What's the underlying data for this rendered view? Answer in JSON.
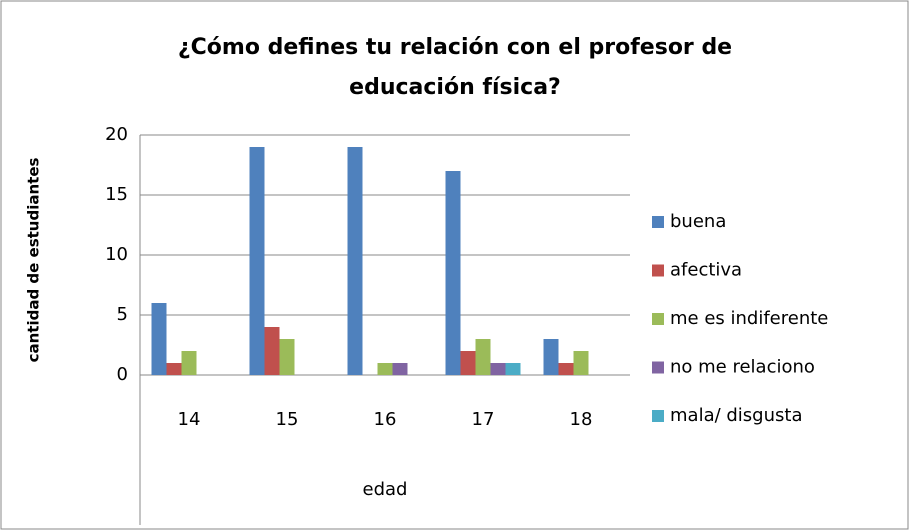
{
  "chart_data": {
    "type": "bar",
    "title": [
      "¿Cómo defines tu relación con el profesor de",
      "educación física?"
    ],
    "x_label": "edad",
    "y_label": "cantidad de estudiantes",
    "categories": [
      "14",
      "15",
      "16",
      "17",
      "18"
    ],
    "series": [
      {
        "name": "buena",
        "color": "#4f81bd",
        "values": [
          6,
          19,
          19,
          17,
          3
        ]
      },
      {
        "name": "afectiva",
        "color": "#c0504d",
        "values": [
          1,
          4,
          0,
          2,
          1
        ]
      },
      {
        "name": "me es indiferente",
        "color": "#9bbb59",
        "values": [
          2,
          3,
          1,
          3,
          2
        ]
      },
      {
        "name": "no me relaciono",
        "color": "#8064a2",
        "values": [
          0,
          0,
          1,
          1,
          0
        ]
      },
      {
        "name": "mala/ disgusta",
        "color": "#4bacc6",
        "values": [
          0,
          0,
          0,
          1,
          0
        ]
      }
    ],
    "ylim": [
      0,
      20
    ],
    "yticks": [
      0,
      5,
      10,
      15,
      20
    ],
    "grid": true,
    "legend": "right"
  }
}
